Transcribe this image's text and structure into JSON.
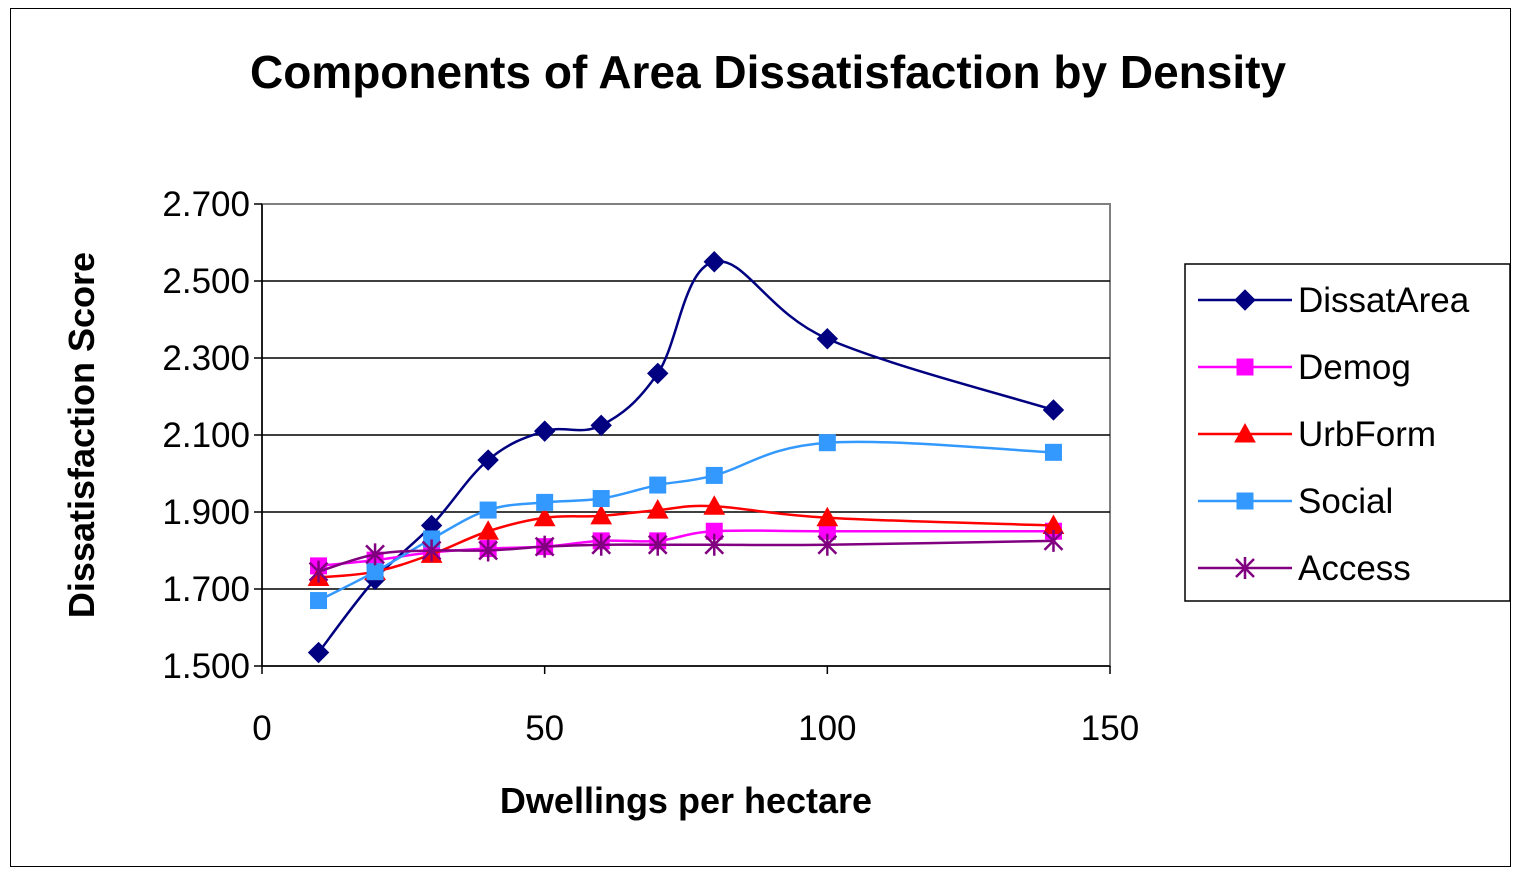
{
  "chart_data": {
    "type": "line",
    "title": "Components of Area Dissatisfaction by Density",
    "xlabel": "Dwellings per hectare",
    "ylabel": "Dissatisfaction Score",
    "xlim": [
      0,
      150
    ],
    "ylim": [
      1.5,
      2.7
    ],
    "x_ticks": [
      "0",
      "50",
      "100",
      "150"
    ],
    "y_ticks": [
      "1.500",
      "1.700",
      "1.900",
      "2.100",
      "2.300",
      "2.500",
      "2.700"
    ],
    "grid": "horizontal",
    "legend_position": "right",
    "series": [
      {
        "name": "DissatArea",
        "color": "#000080",
        "marker": "diamond",
        "x": [
          10,
          20,
          30,
          40,
          50,
          60,
          70,
          80,
          100,
          140
        ],
        "y": [
          1.535,
          1.725,
          1.865,
          2.035,
          2.11,
          2.125,
          2.26,
          2.55,
          2.35,
          2.165
        ]
      },
      {
        "name": "Demog",
        "color": "#ff00ff",
        "marker": "square",
        "x": [
          10,
          20,
          30,
          40,
          50,
          60,
          70,
          80,
          100,
          140
        ],
        "y": [
          1.76,
          1.775,
          1.795,
          1.805,
          1.81,
          1.825,
          1.825,
          1.85,
          1.85,
          1.85
        ]
      },
      {
        "name": "UrbForm",
        "color": "#ff0000",
        "marker": "triangle",
        "x": [
          10,
          20,
          30,
          40,
          50,
          60,
          70,
          80,
          100,
          140
        ],
        "y": [
          1.73,
          1.745,
          1.79,
          1.85,
          1.885,
          1.89,
          1.905,
          1.915,
          1.885,
          1.865
        ]
      },
      {
        "name": "Social",
        "color": "#3399ff",
        "marker": "square",
        "x": [
          10,
          20,
          30,
          40,
          50,
          60,
          70,
          80,
          100,
          140
        ],
        "y": [
          1.67,
          1.745,
          1.83,
          1.905,
          1.925,
          1.935,
          1.97,
          1.995,
          2.08,
          2.055
        ]
      },
      {
        "name": "Access",
        "color": "#800080",
        "marker": "asterisk",
        "x": [
          10,
          20,
          30,
          40,
          50,
          60,
          70,
          80,
          100,
          140
        ],
        "y": [
          1.745,
          1.79,
          1.8,
          1.8,
          1.81,
          1.815,
          1.815,
          1.815,
          1.815,
          1.825
        ]
      }
    ]
  }
}
